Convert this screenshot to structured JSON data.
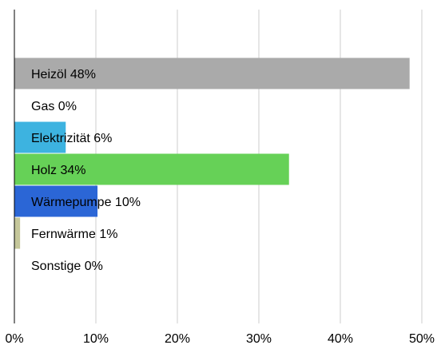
{
  "chart_data": {
    "type": "bar",
    "orientation": "horizontal",
    "categories": [
      "Heizöl",
      "Gas",
      "Elektrizität",
      "Holz",
      "Wärmepumpe",
      "Fernwärme",
      "Sonstige"
    ],
    "values": [
      48.5,
      0,
      6.3,
      33.7,
      10.2,
      0.7,
      0
    ],
    "labels": [
      "Heizöl 48%",
      "Gas 0%",
      "Elektrizität 6%",
      "Holz 34%",
      "Wärmepumpe 10%",
      "Fernwärme 1%",
      "Sonstige 0%"
    ],
    "colors": [
      "#aaaaaa",
      "#cccccc",
      "#3db3e0",
      "#66d157",
      "#2b66d6",
      "#c5c79a",
      "#dddddd"
    ],
    "xlim": [
      0,
      50
    ],
    "xticks": [
      0,
      10,
      20,
      30,
      40,
      50
    ],
    "xtick_labels": [
      "0%",
      "10%",
      "20%",
      "30%",
      "40%",
      "50%"
    ],
    "grid": "vertical",
    "title": "",
    "xlabel": "",
    "ylabel": ""
  }
}
